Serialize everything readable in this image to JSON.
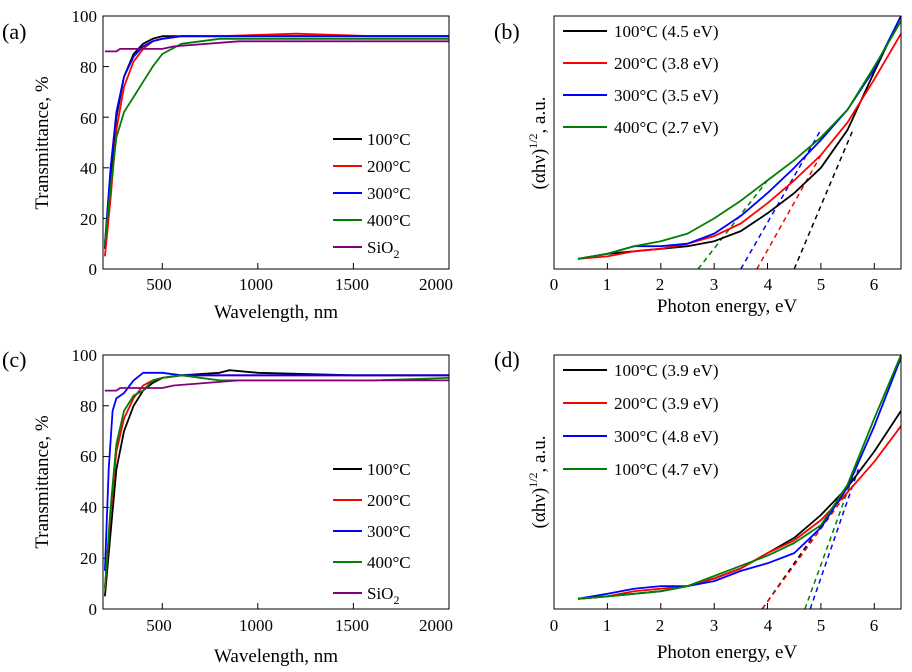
{
  "colors": {
    "s100": "#000000",
    "s200": "#ff0000",
    "s300": "#0000ff",
    "s400": "#008000",
    "sio2": "#800080"
  },
  "chart_data": [
    {
      "panel": "(a)",
      "type": "line",
      "xlabel": "Wavelength, nm",
      "ylabel": "Transmittance, %",
      "xlim": [
        190,
        2000
      ],
      "ylim": [
        0,
        100
      ],
      "xticks": [
        500,
        1000,
        1500,
        2000
      ],
      "yticks": [
        0,
        20,
        40,
        60,
        80,
        100
      ],
      "legend_position": "bottom-right",
      "series": [
        {
          "name": "100°C",
          "color": "#000000",
          "x": [
            200,
            230,
            260,
            300,
            350,
            400,
            450,
            500,
            600,
            800,
            1200,
            1600,
            2000
          ],
          "y": [
            8,
            35,
            60,
            76,
            85,
            89,
            91,
            92,
            92,
            92,
            92,
            92,
            92
          ]
        },
        {
          "name": "200°C",
          "color": "#ff0000",
          "x": [
            200,
            230,
            260,
            300,
            350,
            400,
            450,
            500,
            600,
            800,
            1200,
            1600,
            2000
          ],
          "y": [
            5,
            28,
            55,
            72,
            82,
            87,
            90,
            91,
            92,
            92,
            93,
            92,
            92
          ]
        },
        {
          "name": "300°C",
          "color": "#0000ff",
          "x": [
            200,
            230,
            260,
            300,
            350,
            400,
            450,
            500,
            600,
            800,
            1200,
            1600,
            2000
          ],
          "y": [
            10,
            40,
            62,
            76,
            84,
            88,
            90,
            91,
            92,
            92,
            92,
            92,
            92
          ]
        },
        {
          "name": "400°C",
          "color": "#008000",
          "x": [
            200,
            230,
            260,
            300,
            350,
            400,
            450,
            500,
            600,
            700,
            800,
            1200,
            1600,
            2000
          ],
          "y": [
            10,
            32,
            52,
            62,
            68,
            74,
            80,
            85,
            89,
            90,
            91,
            91,
            91,
            91
          ]
        },
        {
          "name": "SiO2",
          "color": "#800080",
          "x": [
            200,
            260,
            280,
            500,
            560,
            900,
            1500,
            2000
          ],
          "y": [
            86,
            86,
            87,
            87,
            88,
            90,
            90,
            90
          ]
        }
      ]
    },
    {
      "panel": "(b)",
      "type": "line",
      "xlabel": "Photon energy, eV",
      "ylabel": "(αhν)^1/2, a.u.",
      "xlim": [
        0,
        6.5
      ],
      "ylim": [
        0,
        100
      ],
      "xticks": [
        0,
        1,
        2,
        3,
        4,
        5,
        6
      ],
      "legend_position": "top-left",
      "series": [
        {
          "name": "100°C (4.5 eV)",
          "color": "#000000",
          "x": [
            0.45,
            1,
            1.5,
            2,
            2.5,
            3,
            3.5,
            4,
            4.5,
            5,
            5.5,
            6,
            6.5
          ],
          "y": [
            4,
            6,
            7,
            8,
            9,
            11,
            15,
            22,
            30,
            40,
            55,
            78,
            100
          ]
        },
        {
          "name": "200°C (3.8 eV)",
          "color": "#ff0000",
          "x": [
            0.45,
            1,
            1.5,
            2,
            2.5,
            3,
            3.5,
            4,
            4.5,
            5,
            5.5,
            6,
            6.5
          ],
          "y": [
            4,
            5,
            7,
            8,
            10,
            13,
            18,
            26,
            35,
            45,
            58,
            75,
            93
          ]
        },
        {
          "name": "300°C (3.5 eV)",
          "color": "#0000ff",
          "x": [
            0.45,
            1,
            1.5,
            2,
            2.5,
            3,
            3.5,
            4,
            4.5,
            5,
            5.5,
            6,
            6.5
          ],
          "y": [
            4,
            6,
            9,
            9,
            10,
            14,
            21,
            30,
            40,
            51,
            63,
            79,
            100
          ]
        },
        {
          "name": "400°C (2.7 eV)",
          "color": "#008000",
          "x": [
            0.45,
            1,
            1.5,
            2,
            2.5,
            3,
            3.5,
            4,
            4.5,
            5,
            5.5,
            6,
            6.5
          ],
          "y": [
            4,
            6,
            9,
            11,
            14,
            20,
            27,
            35,
            43,
            52,
            63,
            80,
            98
          ]
        }
      ],
      "fits": [
        {
          "color": "#000000",
          "x0": 4.5,
          "x1": 5.6,
          "y1": 55
        },
        {
          "color": "#ff0000",
          "x0": 3.8,
          "x1": 5.0,
          "y1": 45
        },
        {
          "color": "#0000ff",
          "x0": 3.5,
          "x1": 5.0,
          "y1": 55
        },
        {
          "color": "#008000",
          "x0": 2.7,
          "x1": 4.0,
          "y1": 35
        }
      ]
    },
    {
      "panel": "(c)",
      "type": "line",
      "xlabel": "Wavelength, nm",
      "ylabel": "Transmittance, %",
      "xlim": [
        190,
        2000
      ],
      "ylim": [
        0,
        100
      ],
      "xticks": [
        500,
        1000,
        1500,
        2000
      ],
      "yticks": [
        0,
        20,
        40,
        60,
        80,
        100
      ],
      "legend_position": "bottom-right",
      "series": [
        {
          "name": "100°C",
          "color": "#000000",
          "x": [
            200,
            230,
            260,
            300,
            350,
            400,
            450,
            500,
            600,
            800,
            850,
            1000,
            1500,
            2000
          ],
          "y": [
            5,
            30,
            55,
            70,
            80,
            86,
            89,
            91,
            92,
            93,
            94,
            93,
            92,
            92
          ]
        },
        {
          "name": "200°C",
          "color": "#ff0000",
          "x": [
            200,
            230,
            260,
            300,
            350,
            400,
            450,
            500,
            600,
            800,
            1200,
            1600,
            2000
          ],
          "y": [
            8,
            38,
            62,
            75,
            83,
            88,
            90,
            91,
            92,
            92,
            92,
            92,
            92
          ]
        },
        {
          "name": "300°C",
          "color": "#0000ff",
          "x": [
            200,
            220,
            240,
            260,
            300,
            350,
            400,
            450,
            500,
            600,
            800,
            1200,
            1600,
            2000
          ],
          "y": [
            15,
            55,
            78,
            83,
            85,
            90,
            93,
            93,
            93,
            92,
            92,
            92,
            92,
            92
          ]
        },
        {
          "name": "400°C",
          "color": "#008000",
          "x": [
            200,
            230,
            260,
            300,
            350,
            400,
            450,
            500,
            600,
            800,
            1200,
            1600,
            2000
          ],
          "y": [
            8,
            40,
            65,
            78,
            84,
            86,
            90,
            91,
            92,
            90,
            90,
            90,
            91
          ]
        },
        {
          "name": "SiO2",
          "color": "#800080",
          "x": [
            200,
            260,
            280,
            500,
            560,
            900,
            1500,
            2000
          ],
          "y": [
            86,
            86,
            87,
            87,
            88,
            90,
            90,
            90
          ]
        }
      ]
    },
    {
      "panel": "(d)",
      "type": "line",
      "xlabel": "Photon energy, eV",
      "ylabel": "(αhν)^1/2, a.u.",
      "xlim": [
        0,
        6.5
      ],
      "ylim": [
        0,
        100
      ],
      "xticks": [
        0,
        1,
        2,
        3,
        4,
        5,
        6
      ],
      "legend_position": "top-left",
      "series": [
        {
          "name": "100°C (3.9 eV)",
          "color": "#000000",
          "x": [
            0.45,
            1,
            1.5,
            2,
            2.5,
            3,
            3.5,
            4,
            4.5,
            5,
            5.5,
            6,
            6.5
          ],
          "y": [
            4,
            5,
            6,
            7,
            9,
            12,
            16,
            22,
            28,
            37,
            48,
            62,
            78
          ]
        },
        {
          "name": "200°C (3.9 eV)",
          "color": "#ff0000",
          "x": [
            0.45,
            1,
            1.5,
            2,
            2.5,
            3,
            3.5,
            4,
            4.5,
            5,
            5.5,
            6,
            6.5
          ],
          "y": [
            4,
            5,
            7,
            8,
            9,
            12,
            16,
            22,
            27,
            35,
            46,
            58,
            72
          ]
        },
        {
          "name": "300°C (4.8 eV)",
          "color": "#0000ff",
          "x": [
            0.45,
            1,
            1.5,
            2,
            2.5,
            3,
            3.5,
            4,
            4.5,
            5,
            5.5,
            6,
            6.5
          ],
          "y": [
            4,
            6,
            8,
            9,
            9,
            11,
            15,
            18,
            22,
            32,
            48,
            72,
            99
          ]
        },
        {
          "name": "100°C (4.7 eV)",
          "color": "#008000",
          "x": [
            0.45,
            1,
            1.5,
            2,
            2.5,
            3,
            3.5,
            4,
            4.5,
            5,
            5.5,
            6,
            6.5
          ],
          "y": [
            4,
            5,
            6,
            7,
            9,
            13,
            17,
            21,
            26,
            33,
            49,
            75,
            100
          ]
        }
      ],
      "fits": [
        {
          "color": "#000000",
          "x0": 3.9,
          "x1": 5.5,
          "y1": 48
        },
        {
          "color": "#ff0000",
          "x0": 3.9,
          "x1": 5.5,
          "y1": 46
        },
        {
          "color": "#0000ff",
          "x0": 4.8,
          "x1": 5.7,
          "y1": 55
        },
        {
          "color": "#008000",
          "x0": 4.7,
          "x1": 5.7,
          "y1": 58
        }
      ]
    }
  ],
  "panels": {
    "a": {
      "letter": "(a)",
      "ylabel": "Transmittance, %",
      "xlabel": "Wavelength, nm",
      "yticks": [
        "0",
        "20",
        "40",
        "60",
        "80",
        "100"
      ],
      "xticks": [
        "500",
        "1000",
        "1500",
        "2000"
      ],
      "legend": [
        "100°C",
        "200°C",
        "300°C",
        "400°C"
      ],
      "sio2_main": "SiO",
      "sio2_sub": "2"
    },
    "b": {
      "letter": "(b)",
      "ylabel_main": "(αhν)",
      "ylabel_sup": "1/2",
      "ylabel_tail": ", a.u.",
      "xlabel": "Photon energy, eV",
      "xticks": [
        "0",
        "1",
        "2",
        "3",
        "4",
        "5",
        "6"
      ],
      "legend": [
        "100°C (4.5 eV)",
        "200°C (3.8 eV)",
        "300°C (3.5 eV)",
        "400°C (2.7 eV)"
      ]
    },
    "c": {
      "letter": "(c)",
      "ylabel": "Transmittance, %",
      "xlabel": "Wavelength, nm",
      "yticks": [
        "0",
        "20",
        "40",
        "60",
        "80",
        "100"
      ],
      "xticks": [
        "500",
        "1000",
        "1500",
        "2000"
      ],
      "legend": [
        "100°C",
        "200°C",
        "300°C",
        "400°C"
      ],
      "sio2_main": "SiO",
      "sio2_sub": "2"
    },
    "d": {
      "letter": "(d)",
      "ylabel_main": "(αhν)",
      "ylabel_sup": "1/2",
      "ylabel_tail": ", a.u.",
      "xlabel": "Photon energy, eV",
      "xticks": [
        "0",
        "1",
        "2",
        "3",
        "4",
        "5",
        "6"
      ],
      "legend": [
        "100°C (3.9 eV)",
        "200°C (3.9 eV)",
        "300°C (4.8 eV)",
        "100°C (4.7 eV)"
      ]
    }
  }
}
